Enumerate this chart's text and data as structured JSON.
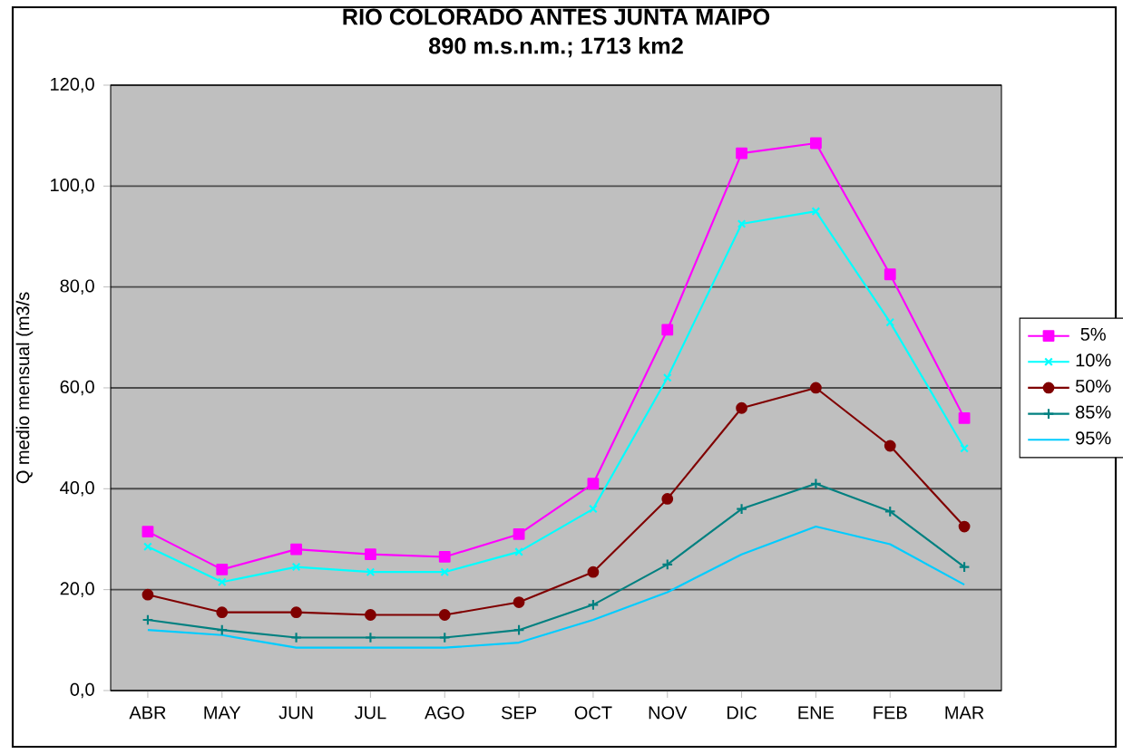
{
  "chart_data": {
    "type": "line",
    "title": "RIO COLORADO ANTES JUNTA MAIPO",
    "subtitle": "890 m.s.n.m.; 1713 km2",
    "ylabel": "Q medio mensual (m3/s",
    "categories": [
      "ABR",
      "MAY",
      "JUN",
      "JUL",
      "AGO",
      "SEP",
      "OCT",
      "NOV",
      "DIC",
      "ENE",
      "FEB",
      "MAR"
    ],
    "series": [
      {
        "name": "5%",
        "color": "#ff00ff",
        "marker": "square",
        "values": [
          31.5,
          24,
          28,
          27,
          26.5,
          31,
          41,
          71.5,
          106.5,
          108.5,
          82.5,
          54
        ]
      },
      {
        "name": "10%",
        "color": "#00ffff",
        "marker": "cross",
        "values": [
          28.5,
          21.5,
          24.5,
          23.5,
          23.5,
          27.5,
          36,
          62,
          92.5,
          95,
          73,
          48
        ]
      },
      {
        "name": "50%",
        "color": "#800000",
        "marker": "circle",
        "values": [
          19,
          15.5,
          15.5,
          15,
          15,
          17.5,
          23.5,
          38,
          56,
          60,
          48.5,
          32.5
        ]
      },
      {
        "name": "85%",
        "color": "#008080",
        "marker": "plus",
        "values": [
          14,
          12,
          10.5,
          10.5,
          10.5,
          12,
          17,
          25,
          36,
          41,
          35.5,
          24.5
        ]
      },
      {
        "name": "95%",
        "color": "#00ccff",
        "marker": "none",
        "values": [
          12,
          11,
          8.5,
          8.5,
          8.5,
          9.5,
          14,
          19.5,
          27,
          32.5,
          29,
          21
        ]
      }
    ],
    "ylim": [
      0,
      120
    ],
    "yticks": [
      {
        "value": 0,
        "label": "0,0"
      },
      {
        "value": 20,
        "label": "20,0"
      },
      {
        "value": 40,
        "label": "40,0"
      },
      {
        "value": 60,
        "label": "60,0"
      },
      {
        "value": 80,
        "label": "80,0"
      },
      {
        "value": 100,
        "label": "100,0"
      },
      {
        "value": 120,
        "label": "120,0"
      }
    ],
    "grid": "y",
    "legend": "right",
    "line_style": "solid"
  }
}
